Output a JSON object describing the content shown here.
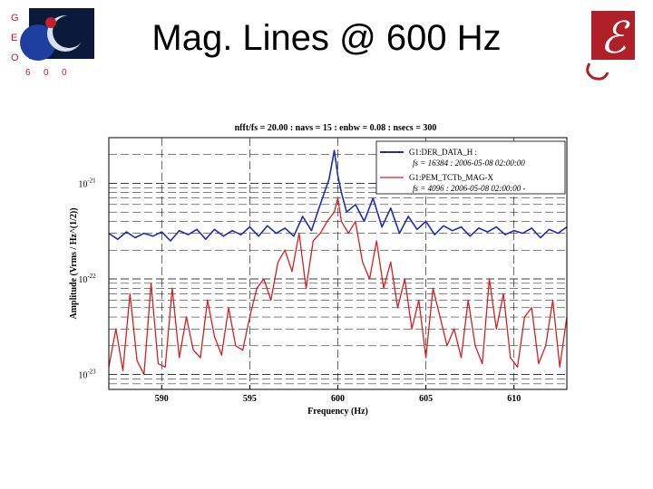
{
  "slide": {
    "title": "Mag. Lines @ 600 Hz",
    "logo_left_letters": [
      "G",
      "E",
      "O",
      "6",
      "0",
      "0"
    ],
    "logo_right_glyph": "ℰ"
  },
  "colors": {
    "blue": "#1a2fb0",
    "red": "#d42020",
    "logo_red": "#b02028",
    "logo_blue": "#1a2a8a"
  },
  "chart_data": {
    "type": "line",
    "title": "nfft/fs = 20.00 : navs = 15 : enbw = 0.08 : nsecs = 300",
    "xlabel": "Frequency (Hz)",
    "ylabel": "Amplitude (Vrms / Hz^(1/2))",
    "xlim": [
      587,
      613
    ],
    "ylim": [
      7e-24,
      3e-21
    ],
    "yscale": "log",
    "xticks": [
      590,
      595,
      600,
      605,
      610
    ],
    "yticks": [
      {
        "value": 1e-21,
        "base": "10",
        "exp": "-21"
      },
      {
        "value": 1e-22,
        "base": "10",
        "exp": "-22"
      },
      {
        "value": 1e-23,
        "base": "10",
        "exp": "-23"
      }
    ],
    "grid": true,
    "legend_position": "top-right",
    "legend": [
      {
        "line1": "G1:DER_DATA_H :",
        "line2": "fs = 16384 : 2006-05-08 02:00:00",
        "color": "#1a2fb0"
      },
      {
        "line1": "G1:PEM_TCTb_MAG-X",
        "line2": "fs = 4096 : 2006-05-08 02:00:00 -",
        "color": "#d42020"
      }
    ],
    "series": [
      {
        "key": "blue",
        "x": [
          587,
          587.5,
          588,
          588.5,
          589,
          589.5,
          590,
          590.5,
          591,
          591.5,
          592,
          592.5,
          593,
          593.5,
          594,
          594.5,
          595,
          595.5,
          596,
          596.5,
          597,
          597.5,
          598,
          598.5,
          599,
          599.5,
          599.8,
          600,
          600.2,
          600.5,
          601,
          601.5,
          602,
          602.5,
          603,
          603.5,
          604,
          604.5,
          605,
          605.5,
          606,
          606.5,
          607,
          607.5,
          608,
          608.5,
          609,
          609.5,
          610,
          610.5,
          611,
          611.5,
          612,
          612.5,
          613
        ],
        "y": [
          3e-22,
          2.6e-22,
          3.1e-22,
          2.7e-22,
          3e-22,
          2.8e-22,
          3.1e-22,
          2.5e-22,
          3.2e-22,
          2.9e-22,
          3.3e-22,
          2.6e-22,
          3.3e-22,
          2.8e-22,
          3.2e-22,
          2.9e-22,
          3.5e-22,
          2.8e-22,
          3.6e-22,
          3e-22,
          3.4e-22,
          2.8e-22,
          4.5e-22,
          3.2e-22,
          6e-22,
          1.1e-21,
          2.2e-21,
          1.2e-21,
          8e-22,
          5e-22,
          6e-22,
          4e-22,
          7e-22,
          3.5e-22,
          5.5e-22,
          3e-22,
          4.5e-22,
          3.3e-22,
          4e-22,
          2.9e-22,
          3.6e-22,
          3.2e-22,
          3.5e-22,
          2.8e-22,
          3.4e-22,
          3.1e-22,
          3.5e-22,
          2.9e-22,
          3.2e-22,
          3e-22,
          3.4e-22,
          2.7e-22,
          3.3e-22,
          3e-22,
          3.5e-22
        ]
      },
      {
        "key": "red",
        "x": [
          587,
          587.4,
          587.8,
          588.2,
          588.6,
          589,
          589.4,
          589.8,
          590.2,
          590.6,
          591,
          591.4,
          591.8,
          592.2,
          592.6,
          593,
          593.4,
          593.8,
          594.2,
          594.6,
          595,
          595.4,
          595.8,
          596.2,
          596.6,
          597,
          597.4,
          597.8,
          598.2,
          598.6,
          599,
          599.4,
          599.8,
          600,
          600.2,
          600.6,
          601,
          601.4,
          601.8,
          602.2,
          602.6,
          603,
          603.4,
          603.8,
          604.2,
          604.6,
          605,
          605.4,
          605.8,
          606.2,
          606.6,
          607,
          607.4,
          607.8,
          608.2,
          608.6,
          609,
          609.4,
          609.8,
          610.2,
          610.6,
          611,
          611.4,
          611.8,
          612.2,
          612.6,
          613
        ],
        "y": [
          1.2e-23,
          3e-23,
          1.1e-23,
          7e-23,
          1.4e-23,
          1e-23,
          9e-23,
          1.3e-23,
          1.2e-23,
          8e-23,
          1.5e-23,
          4e-23,
          1.8e-23,
          1.5e-23,
          6e-23,
          2.5e-23,
          1.6e-23,
          5e-23,
          2e-23,
          1.8e-23,
          4e-23,
          8e-23,
          1e-22,
          6e-23,
          1.5e-22,
          2e-22,
          1.2e-22,
          3e-22,
          8e-23,
          2.5e-22,
          3e-22,
          4e-22,
          5e-22,
          7e-22,
          4e-22,
          3e-22,
          4e-22,
          1.5e-22,
          1e-22,
          2.5e-22,
          8e-23,
          1.5e-22,
          5e-23,
          1e-22,
          3e-23,
          6e-23,
          1.5e-23,
          8e-23,
          4e-23,
          2e-23,
          3e-23,
          1.5e-23,
          6e-23,
          2e-23,
          1.3e-23,
          1e-22,
          3e-23,
          7e-23,
          1.5e-23,
          1.2e-23,
          4e-23,
          5e-23,
          1.3e-23,
          2e-23,
          6e-23,
          1.2e-23,
          4e-23
        ]
      }
    ]
  }
}
